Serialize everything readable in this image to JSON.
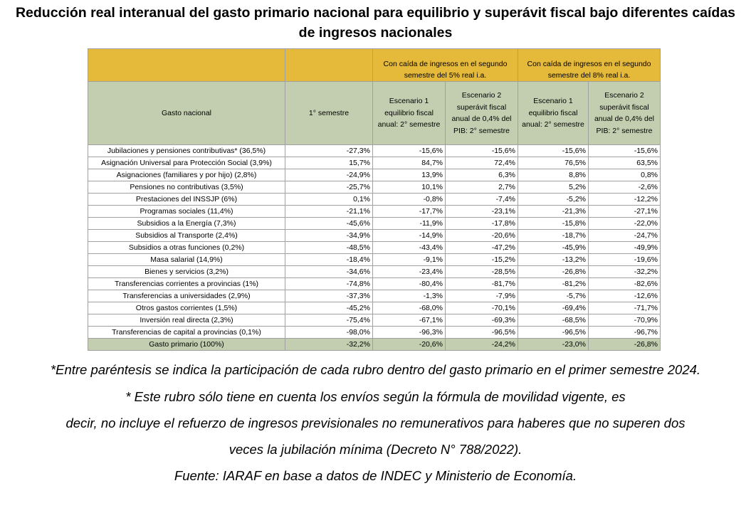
{
  "title": "Reducción real interanual del gasto primario nacional para equilibrio y superávit fiscal bajo diferentes caídas de ingresos nacionales",
  "table": {
    "group_headers": [
      "Con caída de ingresos en el segundo semestre del 5% real i.a.",
      "Con caída de ingresos en el segundo semestre del 8% real i.a."
    ],
    "columns": [
      "Gasto nacional",
      "1° semestre",
      "Escenario 1 equilibrio fiscal anual: 2° semestre",
      "Escenario 2 superávit fiscal anual de 0,4% del PIB: 2° semestre",
      "Escenario 1 equilibrio fiscal anual: 2° semestre",
      "Escenario 2 superávit fiscal anual de 0,4% del PIB: 2° semestre"
    ],
    "rows": [
      [
        "Jubilaciones y pensiones contributivas* (36,5%)",
        "-27,3%",
        "-15,6%",
        "-15,6%",
        "-15,6%",
        "-15,6%"
      ],
      [
        "Asignación Universal para Protección Social (3,9%)",
        "15,7%",
        "84,7%",
        "72,4%",
        "76,5%",
        "63,5%"
      ],
      [
        "Asignaciones (familiares y por hijo) (2,8%)",
        "-24,9%",
        "13,9%",
        "6,3%",
        "8,8%",
        "0,8%"
      ],
      [
        "Pensiones no contributivas (3,5%)",
        "-25,7%",
        "10,1%",
        "2,7%",
        "5,2%",
        "-2,6%"
      ],
      [
        "Prestaciones del INSSJP (6%)",
        "0,1%",
        "-0,8%",
        "-7,4%",
        "-5,2%",
        "-12,2%"
      ],
      [
        "Programas sociales (11,4%)",
        "-21,1%",
        "-17,7%",
        "-23,1%",
        "-21,3%",
        "-27,1%"
      ],
      [
        "Subsidios a la Energía (7,3%)",
        "-45,6%",
        "-11,9%",
        "-17,8%",
        "-15,8%",
        "-22,0%"
      ],
      [
        "Subsidios al Transporte (2,4%)",
        "-34,9%",
        "-14,9%",
        "-20,6%",
        "-18,7%",
        "-24,7%"
      ],
      [
        "Subsidios a otras funciones (0,2%)",
        "-48,5%",
        "-43,4%",
        "-47,2%",
        "-45,9%",
        "-49,9%"
      ],
      [
        "Masa salarial (14,9%)",
        "-18,4%",
        "-9,1%",
        "-15,2%",
        "-13,2%",
        "-19,6%"
      ],
      [
        "Bienes y servicios (3,2%)",
        "-34,6%",
        "-23,4%",
        "-28,5%",
        "-26,8%",
        "-32,2%"
      ],
      [
        "Transferencias corrientes a provincias (1%)",
        "-74,8%",
        "-80,4%",
        "-81,7%",
        "-81,2%",
        "-82,6%"
      ],
      [
        "Transferencias a universidades (2,9%)",
        "-37,3%",
        "-1,3%",
        "-7,9%",
        "-5,7%",
        "-12,6%"
      ],
      [
        "Otros gastos corrientes (1,5%)",
        "-45,2%",
        "-68,0%",
        "-70,1%",
        "-69,4%",
        "-71,7%"
      ],
      [
        "Inversión real directa (2,3%)",
        "-75,4%",
        "-67,1%",
        "-69,3%",
        "-68,5%",
        "-70,9%"
      ],
      [
        "Transferencias de capital a provincias (0,1%)",
        "-98,0%",
        "-96,3%",
        "-96,5%",
        "-96,5%",
        "-96,7%"
      ]
    ],
    "total": [
      "Gasto primario (100%)",
      "-32,2%",
      "-20,6%",
      "-24,2%",
      "-23,0%",
      "-26,8%"
    ]
  },
  "notes": [
    "*Entre paréntesis se indica la participación de cada rubro dentro del gasto primario en el primer semestre 2024.",
    "* Este rubro sólo tiene en cuenta los envíos según la fórmula de movilidad vigente, es",
    "decir, no incluye el refuerzo de ingresos previsionales no remunerativos para haberes que no superen dos",
    "veces la jubilación mínima (Decreto N° 788/2022).",
    "Fuente: IARAF en base a datos de INDEC y Ministerio de Economía."
  ]
}
